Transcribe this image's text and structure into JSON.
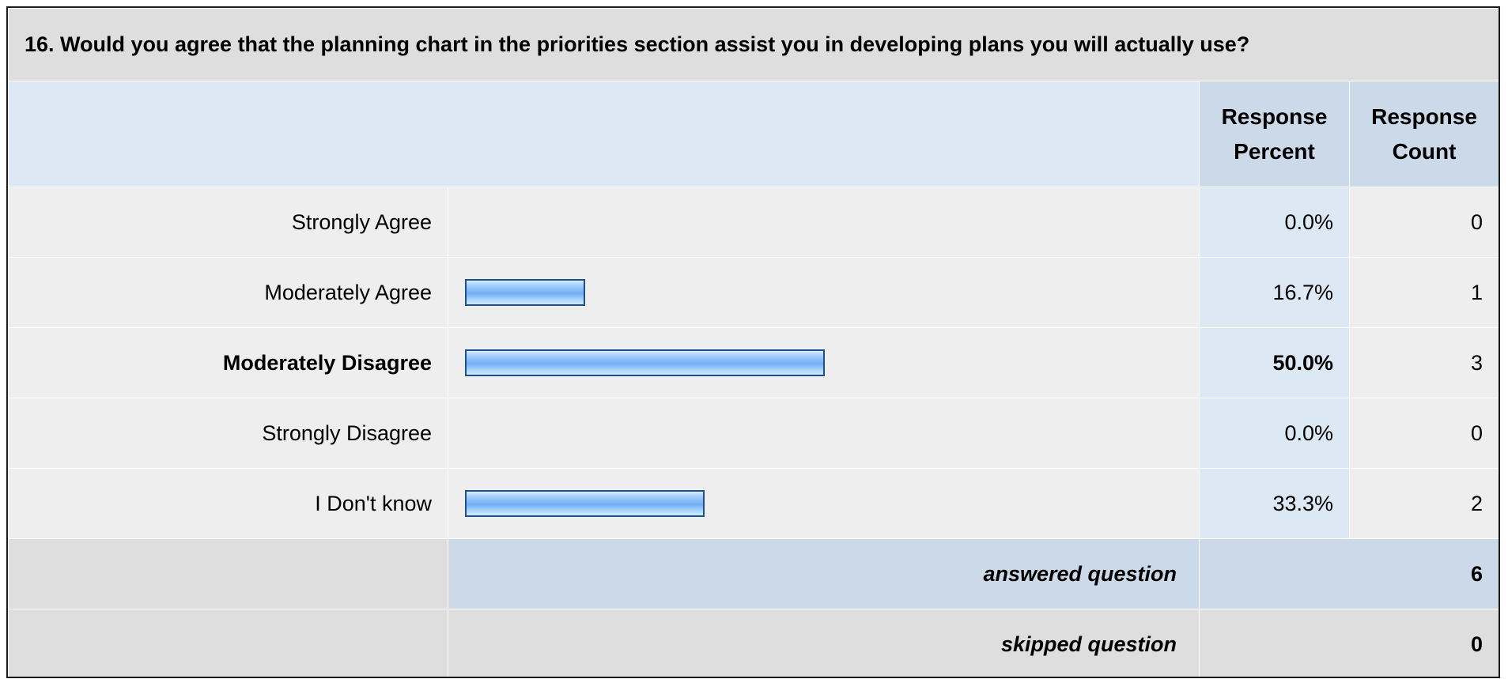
{
  "question": {
    "title": "16. Would you agree that the planning chart in the priorities section assist you in developing plans you will actually use?"
  },
  "header": {
    "percent_line1": "Response",
    "percent_line2": "Percent",
    "count_line1": "Response",
    "count_line2": "Count"
  },
  "chart_data": {
    "type": "bar",
    "orientation": "horizontal",
    "categories": [
      "Strongly Agree",
      "Moderately Agree",
      "Moderately Disagree",
      "Strongly Disagree",
      "I Don't know"
    ],
    "values": [
      0.0,
      16.7,
      50.0,
      0.0,
      33.3
    ],
    "counts": [
      0,
      1,
      3,
      0,
      2
    ],
    "percent_labels": [
      "0.0%",
      "16.7%",
      "50.0%",
      "0.0%",
      "33.3%"
    ],
    "count_labels": [
      "0",
      "1",
      "3",
      "0",
      "2"
    ],
    "highlighted": "Moderately Disagree",
    "xlim": [
      0,
      100
    ]
  },
  "summary": {
    "answered_label": "answered question",
    "answered_value": "6",
    "skipped_label": "skipped question",
    "skipped_value": "0"
  },
  "colors": {
    "bar_border": "#1f4f85",
    "bar_fill": "#7fb6f5",
    "header_bg": "#cbd9e8",
    "title_bg": "#dedede"
  }
}
